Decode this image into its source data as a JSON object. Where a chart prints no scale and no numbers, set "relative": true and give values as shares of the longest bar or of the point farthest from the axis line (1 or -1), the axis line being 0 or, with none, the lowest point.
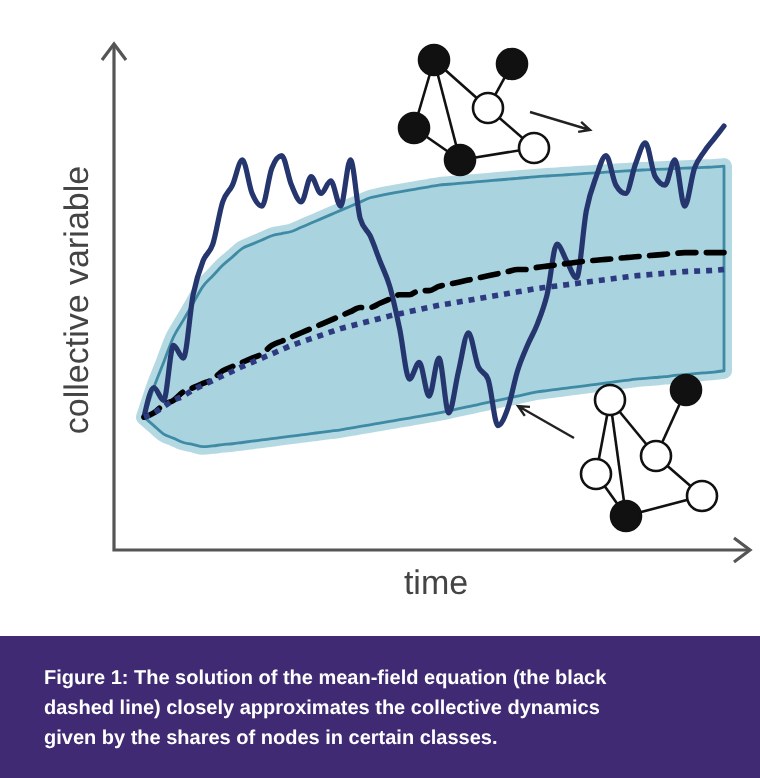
{
  "chart_data": {
    "type": "line",
    "relative": true,
    "xlabel": "time",
    "ylabel": "collective variable",
    "marker": "none",
    "grid": false,
    "categories": [
      null,
      null,
      null,
      null,
      null,
      null,
      null,
      null,
      null,
      null,
      null,
      null,
      null,
      null,
      null,
      null,
      null,
      null,
      null,
      null,
      null,
      null,
      null,
      null,
      null,
      null,
      null,
      null,
      null,
      null,
      null,
      null,
      null,
      null,
      null,
      null,
      null,
      null,
      null,
      null,
      null,
      null,
      null,
      null,
      null,
      null,
      null,
      null,
      null,
      null,
      null,
      null,
      null,
      null,
      null,
      null,
      null,
      null,
      null,
      null
    ],
    "series": [
      {
        "color": "#25366e",
        "line_style": "solid",
        "values": [
          0.31,
          0.38,
          0.35,
          0.48,
          0.45,
          0.6,
          0.68,
          0.72,
          0.82,
          0.86,
          0.92,
          0.84,
          0.81,
          0.9,
          0.93,
          0.86,
          0.82,
          0.88,
          0.84,
          0.87,
          0.81,
          0.92,
          0.78,
          0.74,
          0.68,
          0.62,
          0.52,
          0.4,
          0.44,
          0.36,
          0.45,
          0.32,
          0.42,
          0.51,
          0.43,
          0.4,
          0.29,
          0.33,
          0.42,
          0.48,
          0.53,
          0.6,
          0.72,
          0.68,
          0.64,
          0.8,
          0.88,
          0.93,
          0.86,
          0.84,
          0.91,
          0.96,
          0.88,
          0.86,
          0.92,
          0.81,
          0.9,
          0.94,
          0.97,
          1
        ]
      },
      {
        "color": "#000000",
        "line_style": "dashed",
        "values": [
          0.31,
          0.32,
          0.34,
          0.35,
          0.37,
          0.38,
          0.39,
          0.4,
          0.42,
          0.43,
          0.44,
          0.45,
          0.46,
          0.48,
          0.49,
          0.5,
          0.51,
          0.52,
          0.53,
          0.54,
          0.55,
          0.56,
          0.57,
          0.57,
          0.58,
          0.59,
          0.6,
          0.6,
          0.61,
          0.61,
          0.62,
          0.625,
          0.63,
          0.635,
          0.64,
          0.645,
          0.65,
          0.655,
          0.66,
          0.66,
          0.665,
          0.668,
          0.671,
          0.674,
          0.677,
          0.68,
          0.682,
          0.684,
          0.686,
          0.688,
          0.69,
          0.692,
          0.694,
          0.696,
          0.698,
          0.7,
          0.7,
          0.7,
          0.7,
          0.7
        ],
        "lower": [
          0.31,
          0.29,
          0.27,
          0.26,
          0.25,
          0.245,
          0.24,
          0.242,
          0.245,
          0.247,
          0.25,
          0.253,
          0.256,
          0.259,
          0.262,
          0.265,
          0.268,
          0.271,
          0.274,
          0.277,
          0.28,
          0.284,
          0.288,
          0.292,
          0.296,
          0.3,
          0.304,
          0.308,
          0.312,
          0.316,
          0.32,
          0.325,
          0.33,
          0.335,
          0.34,
          0.345,
          0.35,
          0.355,
          0.36,
          0.365,
          0.37,
          0.373,
          0.376,
          0.379,
          0.382,
          0.385,
          0.388,
          0.391,
          0.394,
          0.397,
          0.4,
          0.402,
          0.404,
          0.406,
          0.409,
          0.411,
          0.413,
          0.415,
          0.417,
          0.42
        ],
        "upper": [
          0.31,
          0.38,
          0.44,
          0.5,
          0.54,
          0.58,
          0.62,
          0.645,
          0.67,
          0.69,
          0.71,
          0.72,
          0.73,
          0.74,
          0.745,
          0.75,
          0.76,
          0.77,
          0.78,
          0.79,
          0.8,
          0.81,
          0.82,
          0.83,
          0.835,
          0.84,
          0.844,
          0.848,
          0.852,
          0.856,
          0.86,
          0.862,
          0.864,
          0.866,
          0.868,
          0.87,
          0.872,
          0.874,
          0.876,
          0.878,
          0.88,
          0.8815,
          0.883,
          0.8845,
          0.886,
          0.8875,
          0.889,
          0.8905,
          0.892,
          0.8935,
          0.895,
          0.896,
          0.897,
          0.898,
          0.899,
          0.9,
          0.901,
          0.902,
          0.903,
          0.905
        ]
      },
      {
        "color": "#2e3a80",
        "line_style": "dotted",
        "values": [
          0.31,
          0.32,
          0.335,
          0.35,
          0.36,
          0.375,
          0.386,
          0.397,
          0.408,
          0.419,
          0.43,
          0.44,
          0.45,
          0.46,
          0.47,
          0.48,
          0.488,
          0.496,
          0.504,
          0.512,
          0.52,
          0.526,
          0.532,
          0.538,
          0.544,
          0.55,
          0.555,
          0.56,
          0.565,
          0.57,
          0.575,
          0.579,
          0.583,
          0.587,
          0.591,
          0.595,
          0.599,
          0.603,
          0.607,
          0.611,
          0.615,
          0.618,
          0.621,
          0.624,
          0.627,
          0.63,
          0.633,
          0.636,
          0.639,
          0.642,
          0.645,
          0.647,
          0.649,
          0.651,
          0.653,
          0.655,
          0.656,
          0.657,
          0.658,
          0.66
        ]
      }
    ],
    "annotations": [
      "Figure 1: The solution of the mean-field equation (the black dashed line) closely approximates the collective dynamics given by the shares of nodes in certain classes."
    ]
  }
}
